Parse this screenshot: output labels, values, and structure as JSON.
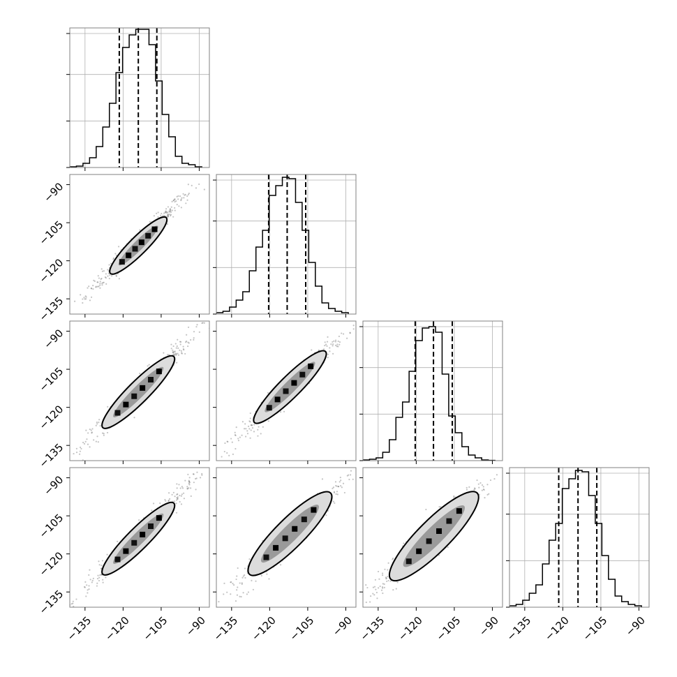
{
  "chart_data": {
    "type": "corner",
    "n_params": 4,
    "axis_range": [
      -141,
      -86
    ],
    "ticks": [
      -135,
      -120,
      -105,
      -90
    ],
    "tick_labels": [
      "−135",
      "−120",
      "−105",
      "−90"
    ],
    "grid": true,
    "colors": {
      "line": "#000000",
      "grid": "#b0b0b0",
      "frame": "#808080",
      "background": "#ffffff"
    },
    "histograms": [
      {
        "param": 0,
        "quantiles": [
          -121.5,
          -114.0,
          -106.7
        ],
        "bin_edges": [
          -141,
          -138.4,
          -135.8,
          -133.2,
          -130.6,
          -128,
          -125.4,
          -122.8,
          -120.2,
          -117.6,
          -115,
          -112.4,
          -109.8,
          -107.2,
          -104.6,
          -102,
          -99.4,
          -96.8,
          -94.2,
          -91.6,
          -89
        ],
        "counts": [
          0.005,
          0.01,
          0.03,
          0.07,
          0.15,
          0.29,
          0.46,
          0.68,
          0.86,
          0.95,
          0.99,
          0.99,
          0.88,
          0.62,
          0.38,
          0.22,
          0.08,
          0.03,
          0.02,
          0.005
        ]
      },
      {
        "param": 1,
        "quantiles": [
          -120.4,
          -113.1,
          -105.8
        ],
        "bin_edges": [
          -141,
          -138.4,
          -135.8,
          -133.2,
          -130.6,
          -128,
          -125.4,
          -122.8,
          -120.2,
          -117.6,
          -115,
          -112.4,
          -109.8,
          -107.2,
          -104.6,
          -102,
          -99.4,
          -96.8,
          -94.2,
          -91.6,
          -89
        ],
        "counts": [
          0.01,
          0.02,
          0.05,
          0.1,
          0.16,
          0.31,
          0.48,
          0.6,
          0.85,
          0.92,
          0.98,
          0.97,
          0.8,
          0.6,
          0.37,
          0.2,
          0.08,
          0.04,
          0.02,
          0.01
        ]
      },
      {
        "param": 2,
        "quantiles": [
          -120.4,
          -113.2,
          -105.8
        ],
        "bin_edges": [
          -141,
          -138.4,
          -135.8,
          -133.2,
          -130.6,
          -128,
          -125.4,
          -122.8,
          -120.2,
          -117.6,
          -115,
          -112.4,
          -109.8,
          -107.2,
          -104.6,
          -102,
          -99.4,
          -96.8,
          -94.2,
          -91.6,
          -89
        ],
        "counts": [
          0.005,
          0.01,
          0.02,
          0.06,
          0.15,
          0.31,
          0.42,
          0.64,
          0.86,
          0.95,
          0.96,
          0.92,
          0.62,
          0.32,
          0.2,
          0.1,
          0.04,
          0.02,
          0.005,
          0.002
        ]
      },
      {
        "param": 3,
        "quantiles": [
          -121.6,
          -114.0,
          -106.6
        ],
        "bin_edges": [
          -141,
          -138.4,
          -135.8,
          -133.2,
          -130.6,
          -128,
          -125.4,
          -122.8,
          -120.2,
          -117.6,
          -115,
          -112.4,
          -109.8,
          -107.2,
          -104.6,
          -102,
          -99.4,
          -96.8,
          -94.2,
          -91.6,
          -89
        ],
        "counts": [
          0.01,
          0.02,
          0.05,
          0.1,
          0.16,
          0.31,
          0.48,
          0.6,
          0.85,
          0.92,
          0.98,
          0.97,
          0.8,
          0.6,
          0.37,
          0.2,
          0.08,
          0.04,
          0.02,
          0.01
        ]
      }
    ],
    "scatter_panels": [
      {
        "row": 1,
        "col": 0,
        "center": [
          -114,
          -113
        ],
        "half_length": 22,
        "width": 2.3,
        "contour_extent": [
          -125,
          -103
        ]
      },
      {
        "row": 2,
        "col": 0,
        "center": [
          -114,
          -113
        ],
        "half_length": 23,
        "width": 2.8,
        "contour_extent": [
          -128,
          -100
        ]
      },
      {
        "row": 2,
        "col": 1,
        "center": [
          -113,
          -113
        ],
        "half_length": 23,
        "width": 2.8,
        "contour_extent": [
          -126,
          -98
        ]
      },
      {
        "row": 3,
        "col": 0,
        "center": [
          -114,
          -113
        ],
        "half_length": 23,
        "width": 2.8,
        "contour_extent": [
          -128,
          -100
        ]
      },
      {
        "row": 3,
        "col": 1,
        "center": [
          -113,
          -113
        ],
        "half_length": 24,
        "width": 3.8,
        "contour_extent": [
          -128,
          -96
        ]
      },
      {
        "row": 3,
        "col": 2,
        "center": [
          -114,
          -113
        ],
        "half_length": 24,
        "width": 4.2,
        "contour_extent": [
          -130,
          -96
        ]
      }
    ]
  }
}
